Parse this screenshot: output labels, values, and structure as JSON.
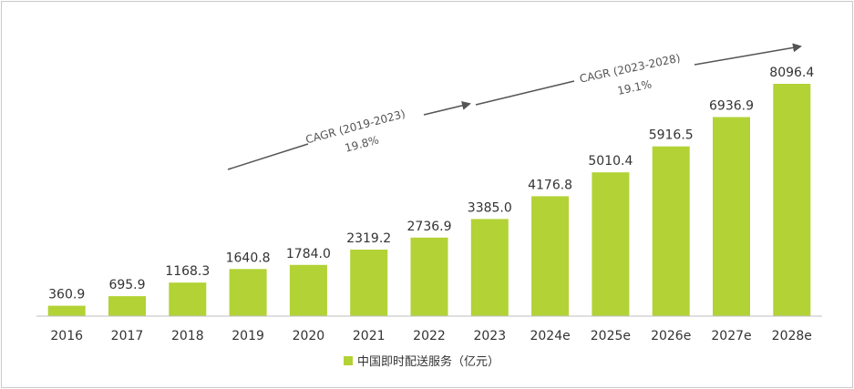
{
  "chart_data": {
    "type": "bar",
    "categories": [
      "2016",
      "2017",
      "2018",
      "2019",
      "2020",
      "2021",
      "2022",
      "2023",
      "2024e",
      "2025e",
      "2026e",
      "2027e",
      "2028e"
    ],
    "series": [
      {
        "name": "中国即时配送服务（亿元）",
        "values": [
          360.9,
          695.9,
          1168.3,
          1640.8,
          1784.0,
          2319.2,
          2736.9,
          3385.0,
          4176.8,
          5010.4,
          5916.5,
          6936.9,
          8096.4
        ]
      }
    ],
    "value_labels": [
      "360.9",
      "695.9",
      "1168.3",
      "1640.8",
      "1784.0",
      "2319.2",
      "2736.9",
      "3385.0",
      "4176.8",
      "5010.4",
      "5916.5",
      "6936.9",
      "8096.4"
    ],
    "ylim": [
      0,
      8096.4
    ],
    "grid": false,
    "legend_position": "bottom-center",
    "bar_color": "#b2d235",
    "annotations": [
      {
        "label": "CAGR (2019-2023)",
        "value": "19.8%"
      },
      {
        "label": "CAGR (2023-2028)",
        "value": "19.1%"
      }
    ]
  }
}
